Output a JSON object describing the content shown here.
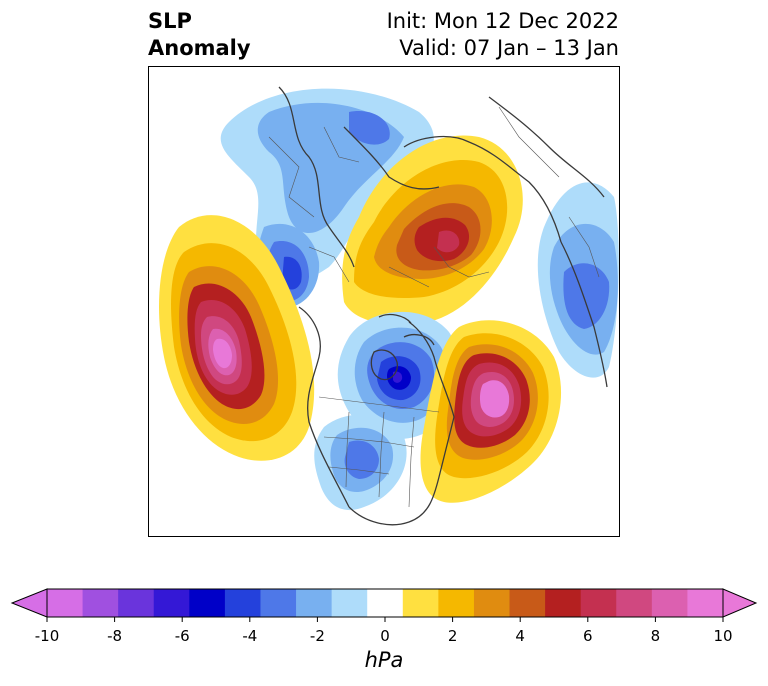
{
  "title": {
    "left_line1": "SLP",
    "left_line2": "Anomaly",
    "right_line1": "Init: Mon 12 Dec 2022",
    "right_line2": "Valid: 07 Jan – 13 Jan"
  },
  "colorbar": {
    "units": "hPa",
    "ticks": [
      "-10",
      "-8",
      "-6",
      "-4",
      "-2",
      "0",
      "2",
      "4",
      "6",
      "8",
      "10"
    ],
    "colors": [
      "#d66ee6",
      "#a050e0",
      "#6a34dc",
      "#3418d6",
      "#0000c8",
      "#2441dc",
      "#4e78e8",
      "#78b0f0",
      "#aedcfa",
      "#ffffff",
      "#ffe040",
      "#f5b800",
      "#e08c10",
      "#c85a18",
      "#b42020",
      "#c43050",
      "#d04880",
      "#dc60b0",
      "#e878d8"
    ],
    "under_color": "#d66ee6",
    "over_color": "#e878d8"
  },
  "map": {
    "projection": "North polar stereographic",
    "anomaly_centers": [
      {
        "region": "Northeast Pacific / Gulf of Alaska",
        "sign": "positive",
        "peak_hPa": 10
      },
      {
        "region": "North Atlantic (south of Greenland)",
        "sign": "positive",
        "peak_hPa": 10
      },
      {
        "region": "Northern Siberia / Arctic coast",
        "sign": "positive",
        "peak_hPa": 7
      },
      {
        "region": "Canadian Arctic Archipelago",
        "sign": "negative",
        "peak_hPa": -6
      },
      {
        "region": "Eastern Europe / Russia",
        "sign": "negative",
        "peak_hPa": -3
      },
      {
        "region": "Central United States",
        "sign": "negative",
        "peak_hPa": -3
      },
      {
        "region": "Northeast Asia / East Asia",
        "sign": "negative",
        "peak_hPa": -4
      }
    ]
  }
}
